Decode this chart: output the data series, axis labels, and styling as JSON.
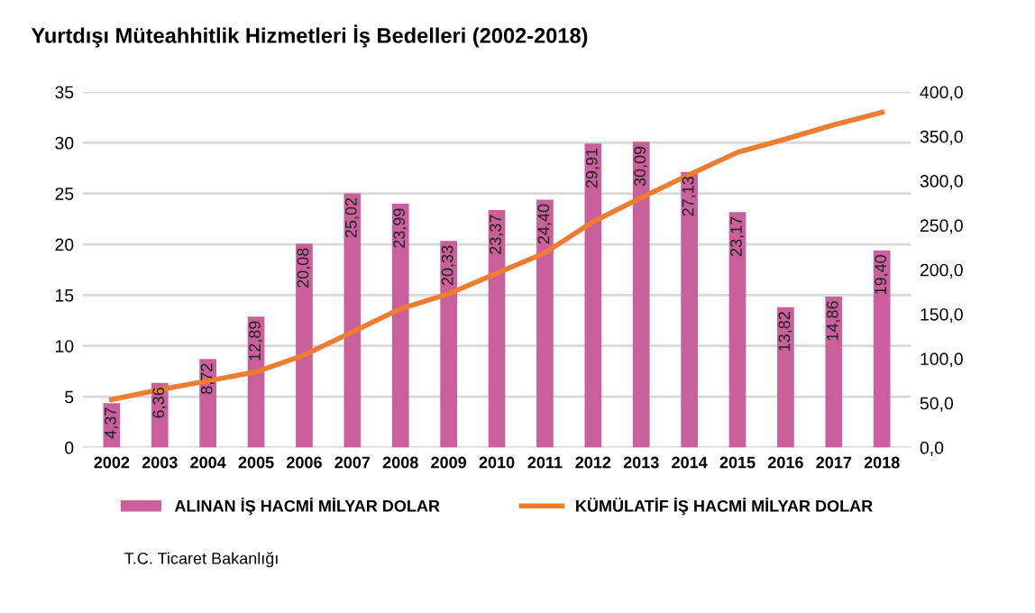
{
  "chart_data": {
    "type": "bar",
    "title": "Yurtdışı Müteahhitlik Hizmetleri İş Bedelleri (2002-2018)",
    "categories": [
      "2002",
      "2003",
      "2004",
      "2005",
      "2006",
      "2007",
      "2008",
      "2009",
      "2010",
      "2011",
      "2012",
      "2013",
      "2014",
      "2015",
      "2016",
      "2017",
      "2018"
    ],
    "series": [
      {
        "name": "ALINAN İŞ HACMİ MİLYAR DOLAR",
        "color": "#c9609b",
        "value_labels": [
          "4,37",
          "6,36",
          "8,72",
          "12,89",
          "20,08",
          "25,02",
          "23,99",
          "20,33",
          "23,37",
          "24,40",
          "29,91",
          "30,09",
          "27,13",
          "23,17",
          "13,82",
          "14,86",
          "19,40"
        ],
        "values": [
          4.37,
          6.36,
          8.72,
          12.89,
          20.08,
          25.02,
          23.99,
          20.33,
          23.37,
          24.4,
          29.91,
          30.09,
          27.13,
          23.17,
          13.82,
          14.86,
          19.4
        ]
      },
      {
        "name": "KÜMÜLATİF İŞ HACMİ MİLYAR DOLAR",
        "color": "#ee7d31",
        "type": "line",
        "axis": "y2",
        "values": [
          54,
          65,
          75,
          85,
          104,
          130,
          156,
          173,
          196,
          219,
          254,
          281,
          307,
          332,
          347,
          363,
          377
        ]
      }
    ],
    "ylim": [
      0,
      35
    ],
    "yticks": [
      0,
      5,
      10,
      15,
      20,
      25,
      30,
      35
    ],
    "y2lim": [
      0,
      400
    ],
    "y2ticks": [
      {
        "value": 0,
        "label": "0,0"
      },
      {
        "value": 50,
        "label": "50,0"
      },
      {
        "value": 100,
        "label": "100,0"
      },
      {
        "value": 150,
        "label": "150,0"
      },
      {
        "value": 200,
        "label": "200,0"
      },
      {
        "value": 250,
        "label": "250,0"
      },
      {
        "value": 300,
        "label": "300,0"
      },
      {
        "value": 350,
        "label": "350,0"
      },
      {
        "value": 400,
        "label": "400,0"
      }
    ],
    "grid": "y",
    "legend": "bottom",
    "marker": "none",
    "line_style": "solid",
    "annotations": [
      "T.C. Ticaret Bakanlığı"
    ]
  }
}
